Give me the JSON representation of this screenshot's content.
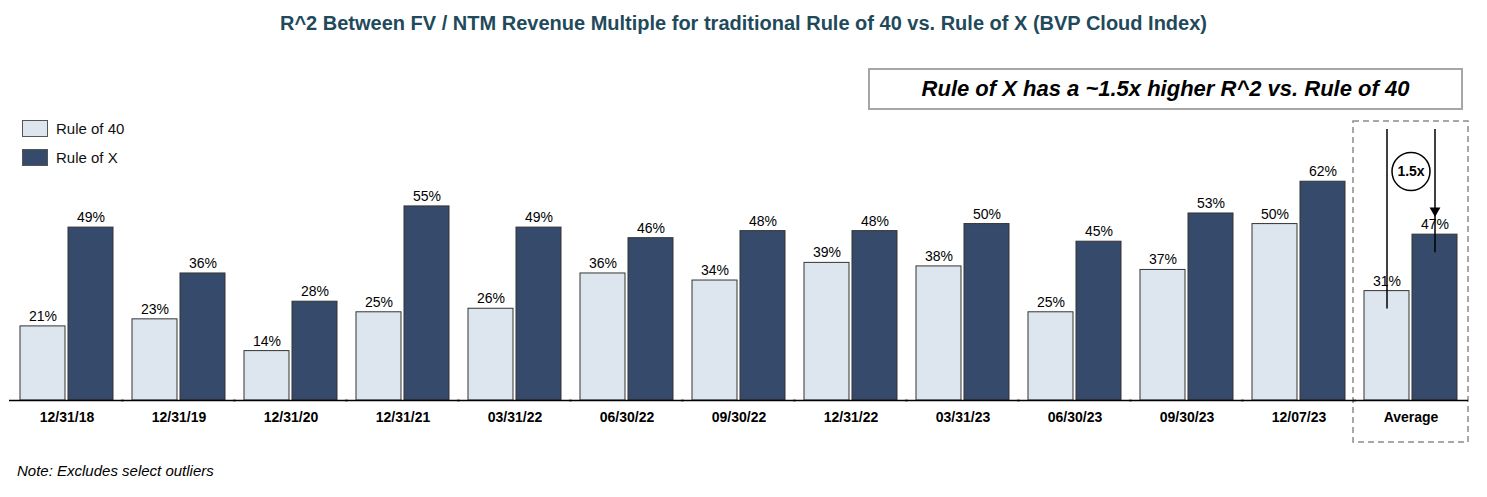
{
  "chart_data": {
    "type": "bar",
    "title": "R^2 Between FV / NTM Revenue Multiple for traditional Rule of 40 vs. Rule of X (BVP Cloud Index)",
    "annotations": [
      "Rule of X has a ~1.5x higher R^2 vs. Rule of 40",
      "1.5x"
    ],
    "note": "Note: Excludes select outliers",
    "categories": [
      "12/31/18",
      "12/31/19",
      "12/31/20",
      "12/31/21",
      "03/31/22",
      "06/30/22",
      "09/30/22",
      "12/31/22",
      "03/31/23",
      "06/30/23",
      "09/30/23",
      "12/07/23",
      "Average"
    ],
    "series": [
      {
        "name": "Rule of 40",
        "color": "#dde6ee",
        "values": [
          21,
          23,
          14,
          25,
          26,
          36,
          34,
          39,
          38,
          25,
          37,
          50,
          31
        ],
        "value_labels": [
          "21%",
          "23%",
          "14%",
          "25%",
          "26%",
          "36%",
          "34%",
          "39%",
          "38%",
          "25%",
          "37%",
          "50%",
          "31%"
        ]
      },
      {
        "name": "Rule of X",
        "color": "#364b6b",
        "values": [
          49,
          36,
          28,
          55,
          49,
          46,
          48,
          48,
          50,
          45,
          53,
          62,
          47
        ],
        "value_labels": [
          "49%",
          "36%",
          "28%",
          "55%",
          "49%",
          "46%",
          "48%",
          "48%",
          "50%",
          "45%",
          "53%",
          "62%",
          "47%"
        ]
      }
    ],
    "ylim": [
      0,
      70
    ],
    "grid": false,
    "legend": "top-left",
    "data_labels": true,
    "tick_labels": "x"
  }
}
